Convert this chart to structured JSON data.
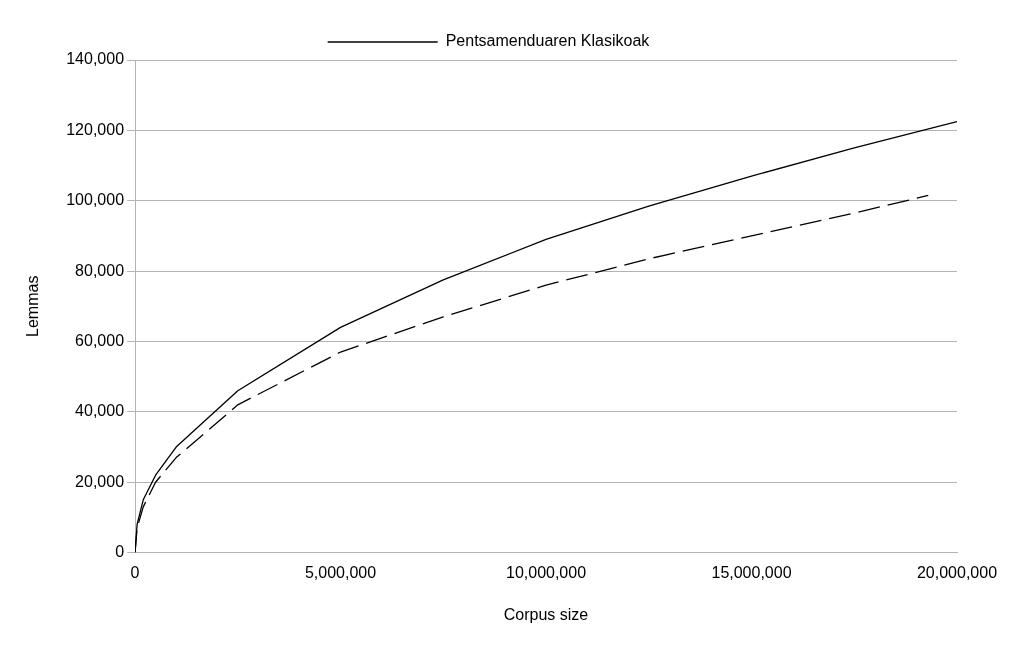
{
  "chart_data": {
    "type": "line",
    "xlabel": "Corpus size",
    "ylabel": "Lemmas",
    "xlim": [
      0,
      20000000
    ],
    "xticks": [
      0,
      {
        "value": 5000000,
        "label": "5,000,000"
      },
      {
        "value": 10000000,
        "label": "10,000,000"
      },
      {
        "value": 15000000,
        "label": "15,000,000"
      },
      {
        "value": 20000000,
        "label": "20,000,000"
      }
    ],
    "ylim": [
      0,
      140000
    ],
    "yticks": [
      0,
      {
        "value": 20000,
        "label": "20,000"
      },
      {
        "value": 40000,
        "label": "40,000"
      },
      {
        "value": 60000,
        "label": "60,000"
      },
      {
        "value": 80000,
        "label": "80,000"
      },
      {
        "value": 100000,
        "label": "100,000"
      },
      {
        "value": 120000,
        "label": "120,000"
      },
      {
        "value": 140000,
        "label": "140,000"
      }
    ],
    "grid": "y",
    "legend": "top",
    "marker": "none",
    "series": [
      {
        "name": "Pentsamenduaren Klasikoak",
        "color": "#000000",
        "line_style": "dashed",
        "x": [
          0,
          50000,
          200000,
          500000,
          1000000,
          2500000,
          5000000,
          7500000,
          10000000,
          12500000,
          15000000,
          17500000,
          19300000
        ],
        "values": [
          0,
          7000,
          13000,
          20000,
          27000,
          42000,
          57000,
          67000,
          76000,
          83500,
          90000,
          96500,
          101500
        ]
      },
      {
        "color": "#000000",
        "line_style": "solid",
        "x": [
          0,
          50000,
          200000,
          500000,
          1000000,
          2500000,
          5000000,
          7500000,
          10000000,
          12500000,
          15000000,
          17500000,
          20000000
        ],
        "values": [
          0,
          8000,
          15000,
          22000,
          30000,
          46000,
          64000,
          77500,
          89000,
          98500,
          107000,
          115000,
          122500
        ]
      }
    ]
  }
}
